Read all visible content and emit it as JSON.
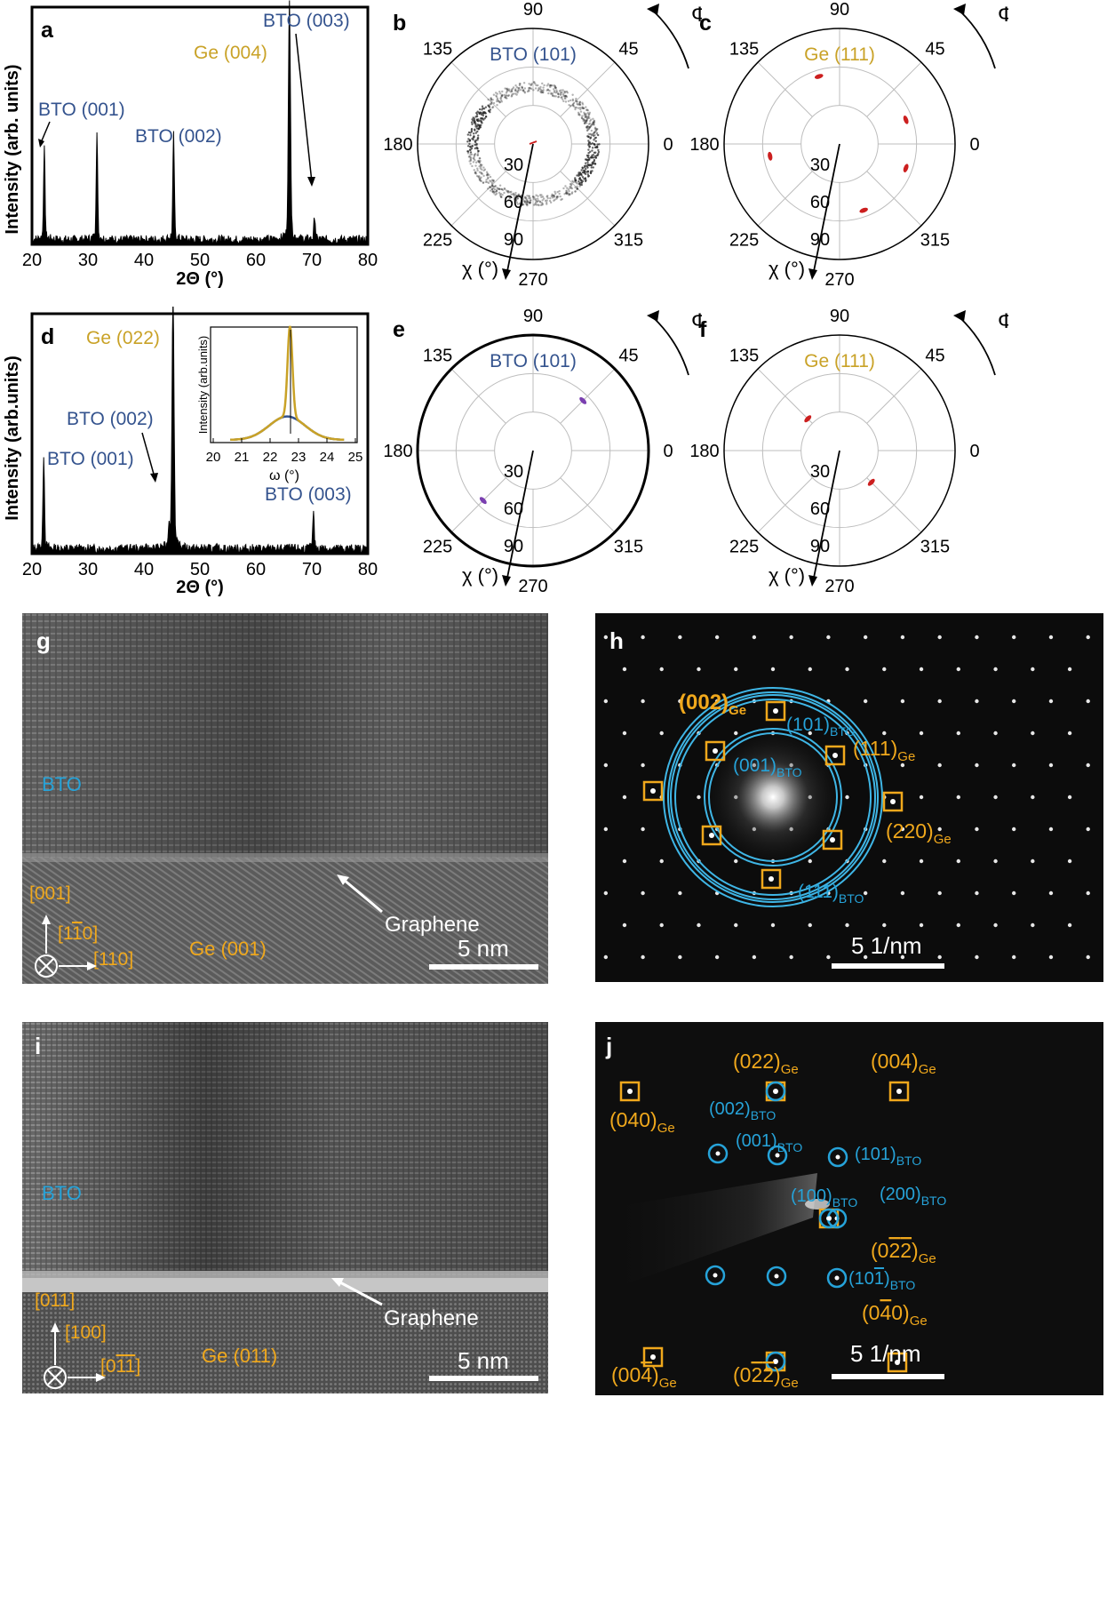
{
  "colors": {
    "bto": "#34538e",
    "ge": "#c9a227",
    "cyan": "#26a3d9",
    "orange": "#f0a81c",
    "red": "#cc1f1f",
    "purple": "#7a3fb0"
  },
  "panel_a": {
    "letter": "a",
    "ylabel": "Intensity (arb. units)",
    "xlabel": "2Θ (°)",
    "xticks": [
      "20",
      "30",
      "40",
      "50",
      "60",
      "70",
      "80"
    ],
    "labels": {
      "bto001": "BTO (001)",
      "bto002": "BTO (002)",
      "ge004": "Ge (004)",
      "bto003": "BTO (003)"
    }
  },
  "panel_d": {
    "letter": "d",
    "ylabel": "Intensity (arb.units)",
    "xlabel": "2Θ (°)",
    "xticks": [
      "20",
      "30",
      "40",
      "50",
      "60",
      "70",
      "80"
    ],
    "labels": {
      "ge022": "Ge (022)",
      "bto002": "BTO (002)",
      "bto001": "BTO (001)",
      "bto003": "BTO (003)"
    },
    "inset": {
      "ylabel": "Intensity (arb.units)",
      "xlabel": "ω (°)",
      "xticks": [
        "20",
        "21",
        "22",
        "23",
        "24",
        "25"
      ]
    }
  },
  "chart_data": [
    {
      "type": "line",
      "panel": "a",
      "xlabel": "2Θ (°)",
      "ylabel": "Intensity (arb. units)",
      "xlim": [
        20,
        80
      ],
      "peaks": [
        {
          "x": 22.2,
          "height": 0.38,
          "label": "BTO (001)"
        },
        {
          "x": 31.6,
          "height": 0.45,
          "label": ""
        },
        {
          "x": 45.3,
          "height": 0.44,
          "label": "BTO (002)"
        },
        {
          "x": 66.0,
          "height": 1.0,
          "label": "Ge (004)"
        },
        {
          "x": 70.5,
          "height": 0.1,
          "label": "BTO (003)"
        }
      ]
    },
    {
      "type": "line",
      "panel": "d",
      "xlabel": "2Θ (°)",
      "ylabel": "Intensity (arb.units)",
      "xlim": [
        20,
        80
      ],
      "peaks": [
        {
          "x": 22.1,
          "height": 0.38,
          "label": "BTO (001)"
        },
        {
          "x": 45.2,
          "height": 1.0,
          "label": "Ge (022)"
        },
        {
          "x": 44.5,
          "height": 0.1,
          "label": "BTO (002)"
        },
        {
          "x": 70.3,
          "height": 0.14,
          "label": "BTO (003)"
        }
      ]
    },
    {
      "type": "line",
      "panel": "d-inset",
      "xlabel": "ω (°)",
      "ylabel": "Intensity (arb.units)",
      "xlim": [
        20,
        25
      ],
      "series": [
        {
          "name": "Ge",
          "center": 22.7,
          "width": 0.12,
          "height": 0.85
        },
        {
          "name": "BTO",
          "center": 22.6,
          "width": 0.9,
          "height": 0.22
        }
      ]
    }
  ],
  "polar_common": {
    "phi_label": "Φ (°)",
    "chi_label": "χ (°)",
    "angles": [
      "90",
      "45",
      "0",
      "315",
      "270",
      "225",
      "180",
      "135"
    ],
    "radii": [
      "30",
      "60",
      "90"
    ]
  },
  "panel_b": {
    "letter": "b",
    "title": "BTO (101)",
    "type": "ring"
  },
  "panel_c": {
    "letter": "c",
    "title": "Ge (111)",
    "spots_phi": [
      107,
      20,
      -20,
      -70,
      190
    ],
    "spots_chi": [
      55,
      55,
      55,
      55,
      55
    ]
  },
  "panel_e": {
    "letter": "e",
    "title": "BTO (101)",
    "spots_phi": [
      45,
      225
    ],
    "spots_chi": [
      55,
      55
    ]
  },
  "panel_f": {
    "letter": "f",
    "title": "Ge (111)",
    "spots_phi": [
      135,
      -45
    ],
    "spots_chi": [
      35,
      35
    ]
  },
  "panel_g": {
    "letter": "g",
    "bto": "BTO",
    "dir1": "[001]",
    "dir2": "[1",
    "dir2b": "0]",
    "dir2bar": "1",
    "dir3": "[110]",
    "ge": "Ge (001)",
    "graphene": "Graphene",
    "scale": "5 nm"
  },
  "panel_h": {
    "letter": "h",
    "ge002": "(002)",
    "bto101": "(101)",
    "ge111": "(111)",
    "bto001": "(001)",
    "ge220": "(220)",
    "bto111": "(111)",
    "sub_ge": "Ge",
    "sub_bto": "BTO",
    "scale": "5 1/nm"
  },
  "panel_i": {
    "letter": "i",
    "bto": "BTO",
    "dir1": "[011]",
    "dir2": "[100]",
    "dir3a": "[0",
    "dir3bar1": "1",
    "dir3bar2": "1",
    "dir3b": "]",
    "ge": "Ge (011)",
    "graphene": "Graphene",
    "scale": "5 nm"
  },
  "panel_j": {
    "letter": "j",
    "ge022": "(022)",
    "ge004": "(004)",
    "ge040": "(040)",
    "bto002": "(002)",
    "bto001": "(001)",
    "bto101": "(101)",
    "bto100": "(100)",
    "bto200": "(200)",
    "ge0m2m2": "(0",
    "bto10m1": "(10",
    "ge0m40": "(0",
    "ge00m4": "(00",
    "ge0m2m2b": "(0",
    "sub_ge": "Ge",
    "sub_bto": "BTO",
    "scale": "5 1/nm"
  }
}
